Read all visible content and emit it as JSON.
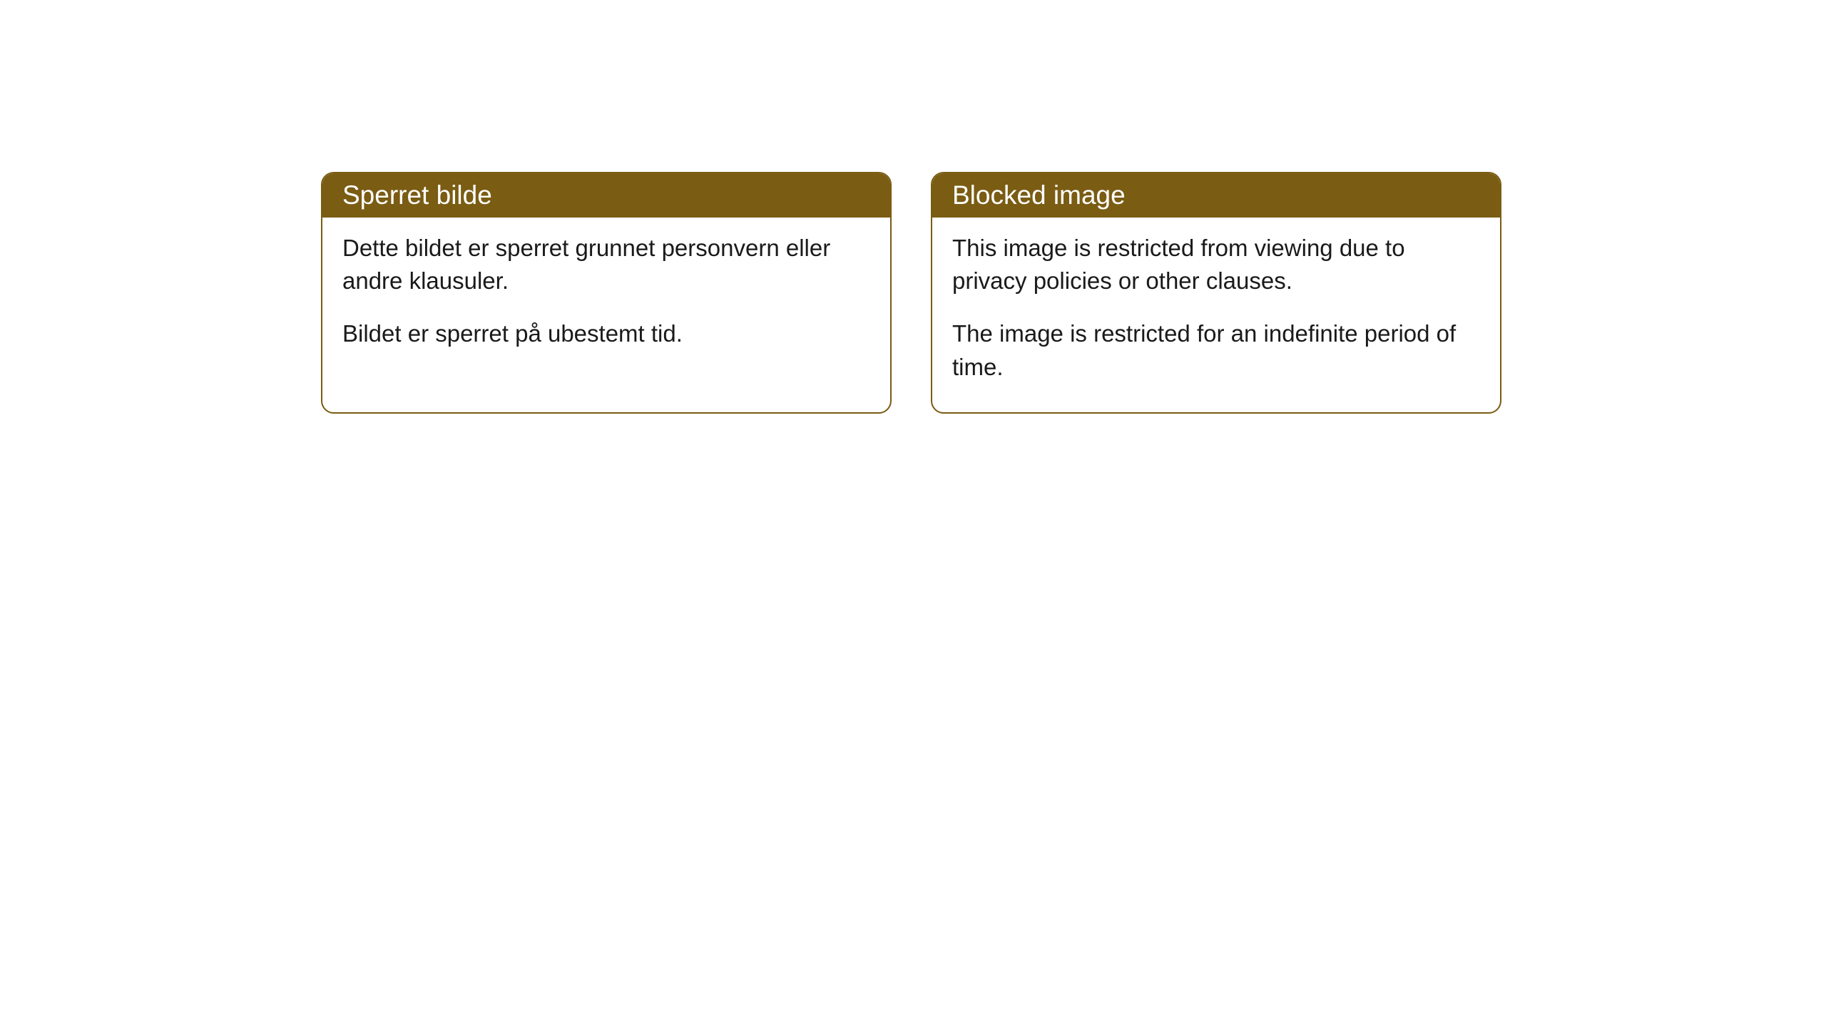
{
  "cards": [
    {
      "title": "Sperret bilde",
      "paragraph1": "Dette bildet er sperret grunnet personvern eller andre klausuler.",
      "paragraph2": "Bildet er sperret på ubestemt tid."
    },
    {
      "title": "Blocked image",
      "paragraph1": "This image is restricted from viewing due to privacy policies or other clauses.",
      "paragraph2": "The image is restricted for an indefinite period of time."
    }
  ],
  "style": {
    "header_bg_color": "#7a5c13",
    "header_text_color": "#ffffff",
    "border_color": "#7a5c13",
    "body_text_color": "#1a1a1a",
    "background_color": "#ffffff",
    "border_radius": 18,
    "header_fontsize": 37,
    "body_fontsize": 33
  }
}
